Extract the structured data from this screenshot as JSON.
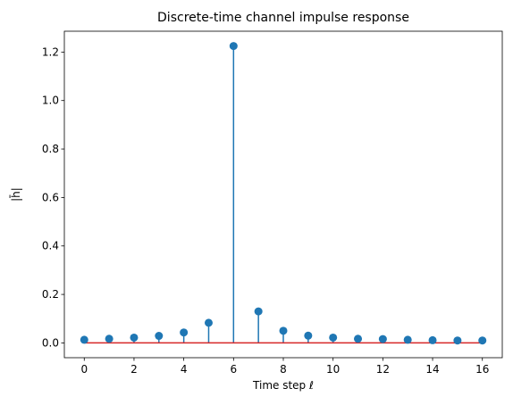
{
  "chart_data": {
    "type": "stem",
    "title": "Discrete-time channel impulse response",
    "xlabel": "Time step ℓ",
    "ylabel": "|h̄|",
    "x": [
      0,
      1,
      2,
      3,
      4,
      5,
      6,
      7,
      8,
      9,
      10,
      11,
      12,
      13,
      14,
      15,
      16
    ],
    "y": [
      0.013,
      0.017,
      0.022,
      0.029,
      0.043,
      0.083,
      1.225,
      0.13,
      0.05,
      0.03,
      0.022,
      0.017,
      0.016,
      0.013,
      0.011,
      0.01,
      0.01
    ],
    "xlim": [
      -0.8,
      16.8
    ],
    "ylim": [
      -0.061,
      1.286
    ],
    "xticks": [
      0,
      2,
      4,
      6,
      8,
      10,
      12,
      14,
      16
    ],
    "yticks": [
      0.0,
      0.2,
      0.4,
      0.6,
      0.8,
      1.0,
      1.2
    ],
    "ytick_labels": [
      "0.0",
      "0.2",
      "0.4",
      "0.6",
      "0.8",
      "1.0",
      "1.2"
    ],
    "grid": false,
    "colors": {
      "stem": "#1f77b4",
      "marker": "#1f77b4",
      "baseline": "#d62728",
      "axes": "#000000"
    }
  }
}
